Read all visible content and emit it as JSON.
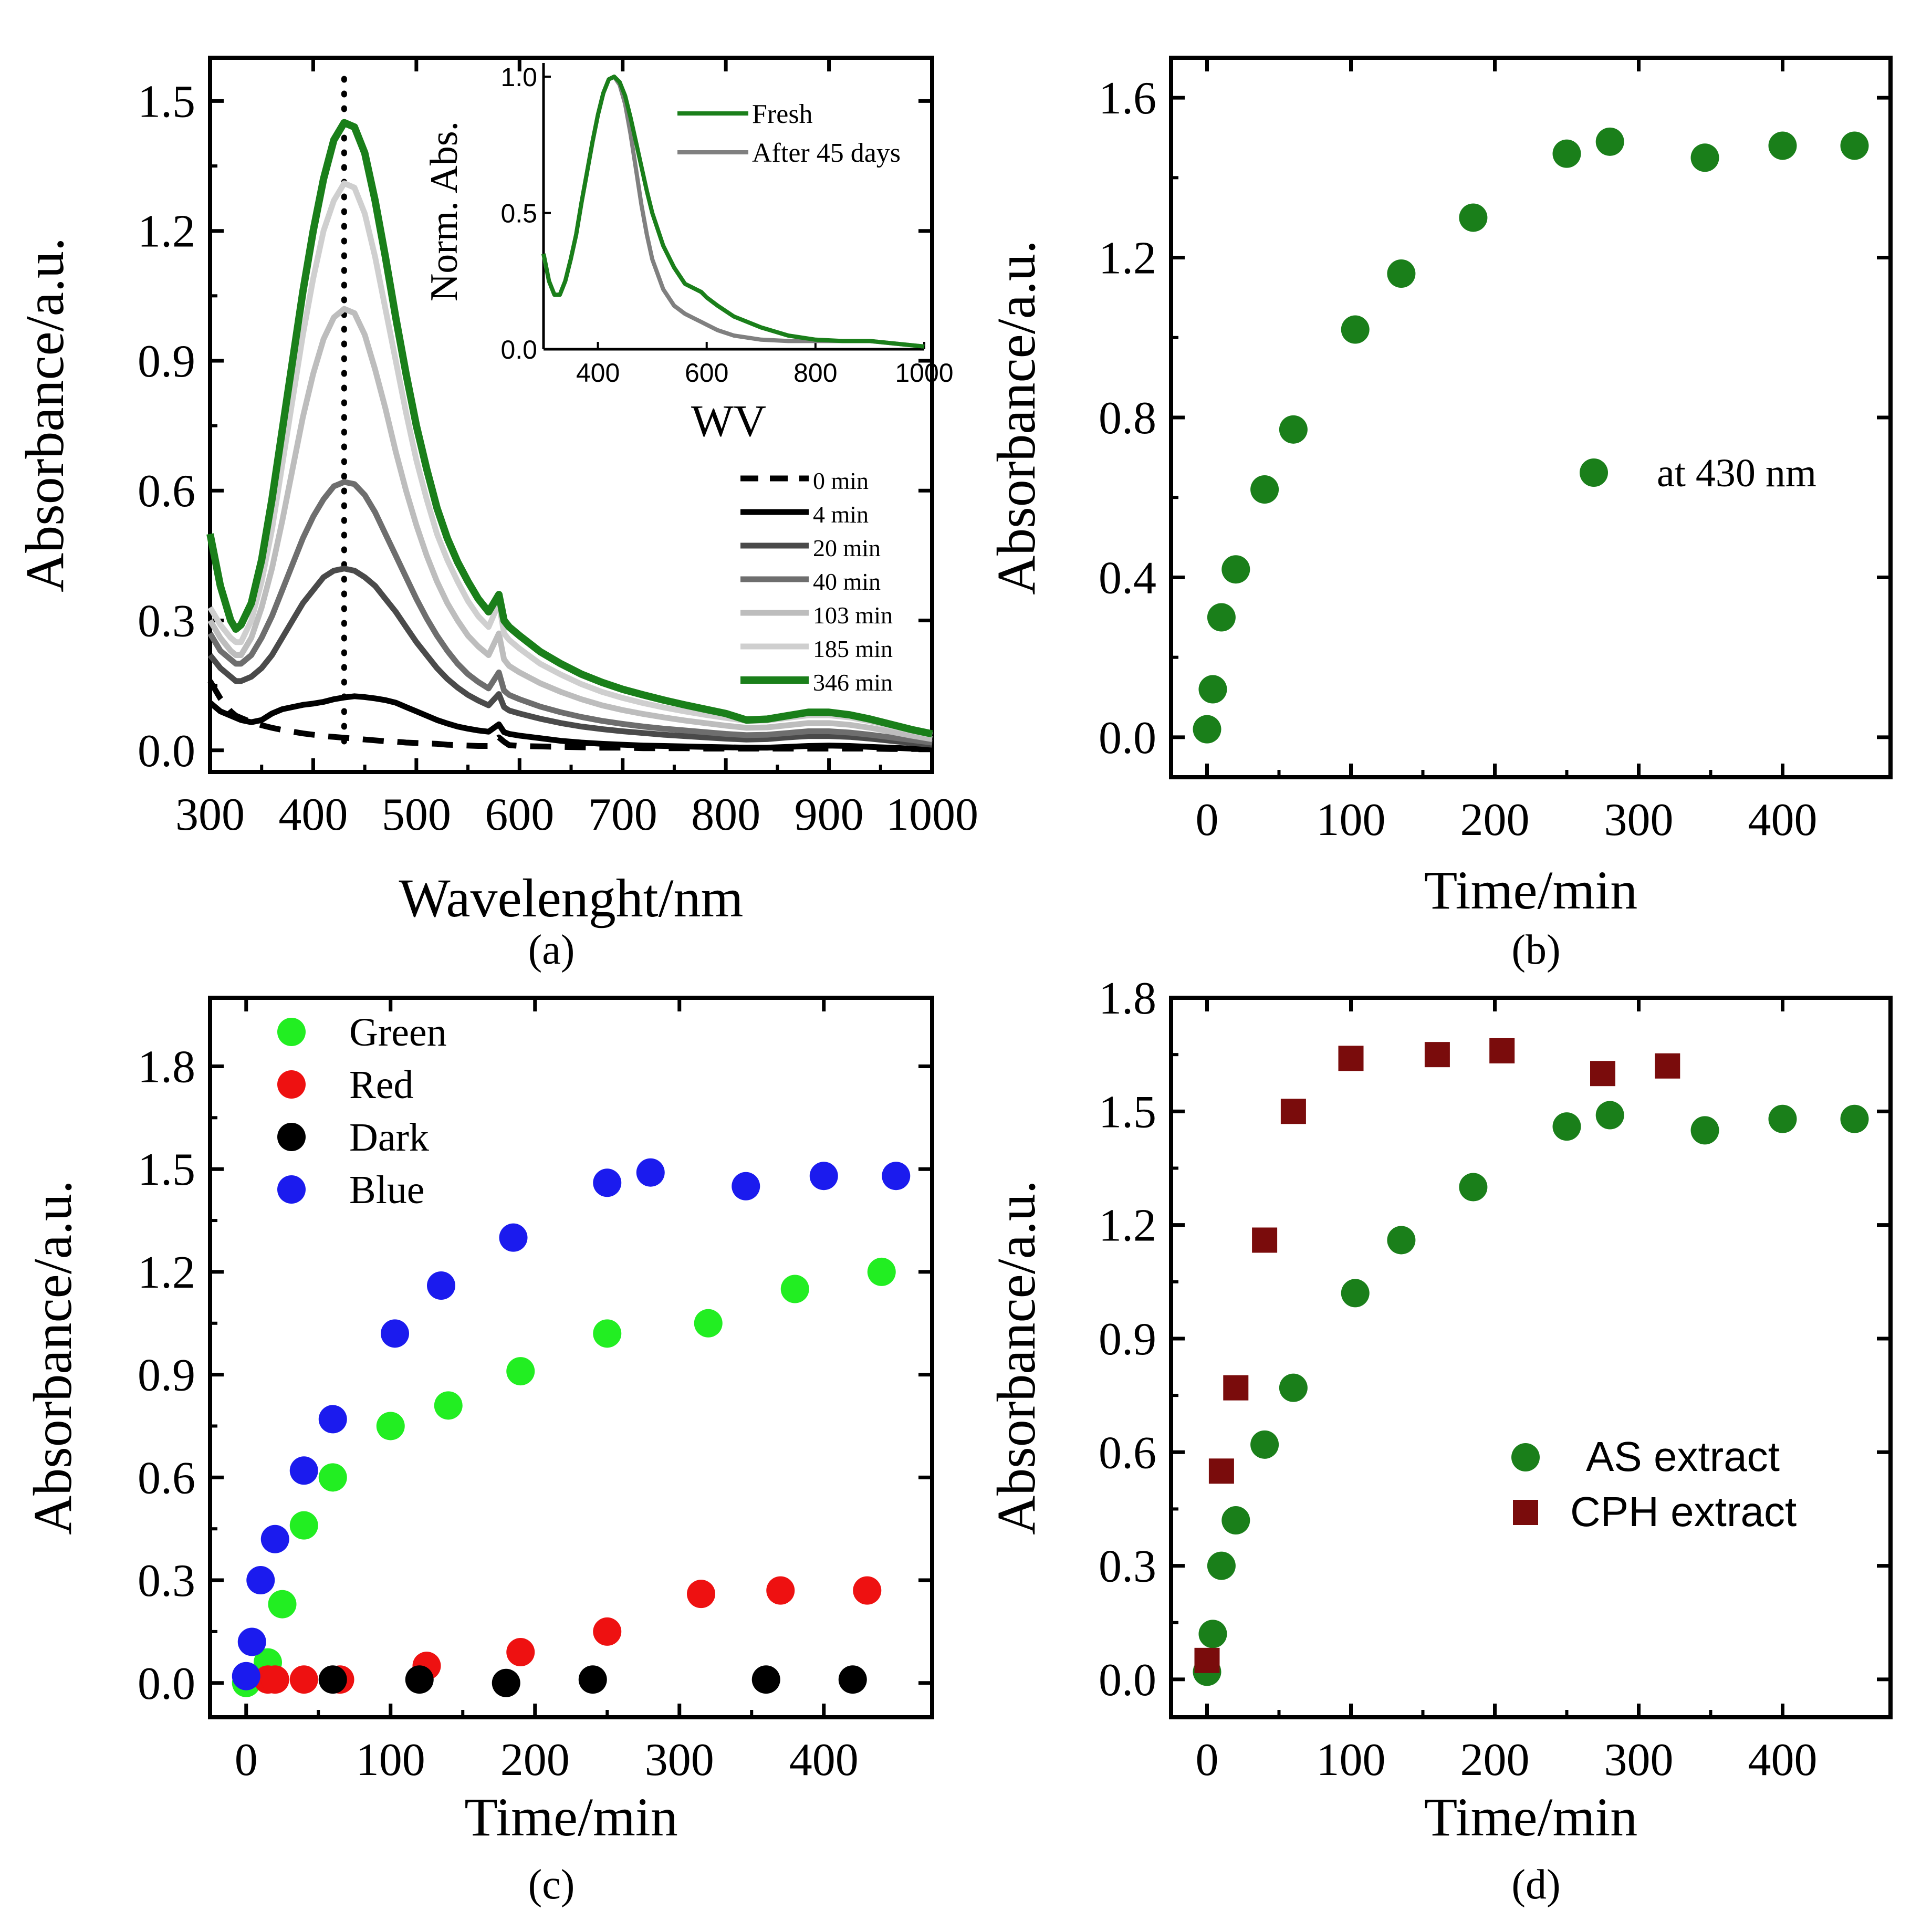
{
  "colors": {
    "fresh": "#1a7f1a",
    "aged": "#808080",
    "as_extract": "#1a7f1a",
    "cph_extract": "#7a0c0c",
    "green": "#22ee22",
    "red": "#ee1111",
    "dark": "#000000",
    "blue": "#1b1bee"
  },
  "chart_data": [
    {
      "panel": "a",
      "type": "line",
      "caption": "(a)",
      "xlabel": "Wavelenght/nm",
      "ylabel": "Absorbance/a.u.",
      "xlim": [
        300,
        1000
      ],
      "ylim": [
        -0.05,
        1.6
      ],
      "xticks": [
        300,
        400,
        500,
        600,
        700,
        800,
        900,
        1000
      ],
      "xtick_labels": [
        "300",
        "400",
        "500",
        "600",
        "700",
        "800",
        "900",
        "1000"
      ],
      "yticks": [
        0.0,
        0.3,
        0.6,
        0.9,
        1.2,
        1.5
      ],
      "ytick_labels": [
        "0.0",
        "0.3",
        "0.6",
        "0.9",
        "1.2",
        "1.5"
      ],
      "peak_marker_x": 430,
      "legend_position": "bottom-right",
      "x": [
        300,
        310,
        320,
        325,
        330,
        340,
        350,
        360,
        370,
        380,
        390,
        400,
        410,
        420,
        430,
        440,
        450,
        460,
        470,
        480,
        490,
        500,
        510,
        520,
        530,
        540,
        550,
        560,
        570,
        580,
        585,
        590,
        600,
        620,
        640,
        660,
        680,
        700,
        720,
        740,
        760,
        780,
        800,
        820,
        840,
        860,
        880,
        900,
        920,
        940,
        960,
        980,
        1000
      ],
      "series": [
        {
          "name": "0 min",
          "color": "#000000",
          "dash": "dashed",
          "values": [
            0.16,
            0.12,
            0.09,
            0.08,
            0.075,
            0.065,
            0.058,
            0.052,
            0.047,
            0.043,
            0.039,
            0.036,
            0.033,
            0.031,
            0.029,
            0.027,
            0.025,
            0.023,
            0.021,
            0.02,
            0.018,
            0.017,
            0.016,
            0.015,
            0.013,
            0.012,
            0.011,
            0.01,
            0.01,
            0.03,
            0.02,
            0.012,
            0.01,
            0.009,
            0.008,
            0.007,
            0.006,
            0.006,
            0.005,
            0.005,
            0.005,
            0.004,
            0.004,
            0.004,
            0.004,
            0.004,
            0.004,
            0.004,
            0.004,
            0.004,
            0.003,
            0.003,
            0.003
          ]
        },
        {
          "name": "4 min",
          "color": "#000000",
          "dash": "solid",
          "values": [
            0.11,
            0.09,
            0.08,
            0.075,
            0.07,
            0.065,
            0.07,
            0.085,
            0.095,
            0.1,
            0.105,
            0.108,
            0.112,
            0.118,
            0.122,
            0.125,
            0.123,
            0.12,
            0.116,
            0.11,
            0.1,
            0.09,
            0.08,
            0.07,
            0.062,
            0.055,
            0.05,
            0.046,
            0.043,
            0.06,
            0.042,
            0.038,
            0.034,
            0.028,
            0.022,
            0.018,
            0.015,
            0.013,
            0.011,
            0.01,
            0.009,
            0.008,
            0.007,
            0.006,
            0.006,
            0.008,
            0.01,
            0.011,
            0.01,
            0.008,
            0.006,
            0.004,
            0.003
          ]
        },
        {
          "name": "20 min",
          "color": "#4a4a4a",
          "dash": "solid",
          "values": [
            0.22,
            0.19,
            0.17,
            0.16,
            0.16,
            0.17,
            0.19,
            0.22,
            0.26,
            0.3,
            0.34,
            0.37,
            0.4,
            0.415,
            0.42,
            0.415,
            0.4,
            0.38,
            0.35,
            0.32,
            0.285,
            0.25,
            0.22,
            0.19,
            0.165,
            0.145,
            0.128,
            0.115,
            0.104,
            0.13,
            0.1,
            0.092,
            0.085,
            0.073,
            0.063,
            0.055,
            0.049,
            0.044,
            0.04,
            0.036,
            0.033,
            0.03,
            0.027,
            0.025,
            0.026,
            0.03,
            0.033,
            0.033,
            0.031,
            0.027,
            0.022,
            0.017,
            0.013
          ]
        },
        {
          "name": "40 min",
          "color": "#6e6e6e",
          "dash": "solid",
          "values": [
            0.27,
            0.23,
            0.21,
            0.2,
            0.2,
            0.22,
            0.26,
            0.31,
            0.37,
            0.43,
            0.49,
            0.54,
            0.58,
            0.61,
            0.62,
            0.615,
            0.59,
            0.55,
            0.5,
            0.45,
            0.4,
            0.35,
            0.305,
            0.265,
            0.23,
            0.2,
            0.176,
            0.158,
            0.143,
            0.18,
            0.138,
            0.128,
            0.118,
            0.101,
            0.088,
            0.077,
            0.068,
            0.061,
            0.055,
            0.05,
            0.046,
            0.042,
            0.038,
            0.035,
            0.036,
            0.04,
            0.044,
            0.044,
            0.041,
            0.036,
            0.03,
            0.024,
            0.018
          ]
        },
        {
          "name": "103 min",
          "color": "#bdbdbd",
          "dash": "solid",
          "values": [
            0.3,
            0.26,
            0.23,
            0.22,
            0.22,
            0.26,
            0.33,
            0.42,
            0.53,
            0.65,
            0.77,
            0.87,
            0.95,
            1.0,
            1.02,
            1.01,
            0.96,
            0.88,
            0.79,
            0.69,
            0.6,
            0.52,
            0.45,
            0.39,
            0.34,
            0.3,
            0.265,
            0.24,
            0.22,
            0.27,
            0.21,
            0.195,
            0.18,
            0.155,
            0.135,
            0.118,
            0.104,
            0.093,
            0.084,
            0.076,
            0.069,
            0.063,
            0.057,
            0.052,
            0.053,
            0.058,
            0.063,
            0.063,
            0.059,
            0.052,
            0.043,
            0.034,
            0.026
          ]
        },
        {
          "name": "185 min",
          "color": "#cfcfcf",
          "dash": "solid",
          "values": [
            0.33,
            0.29,
            0.26,
            0.25,
            0.25,
            0.3,
            0.39,
            0.51,
            0.66,
            0.81,
            0.96,
            1.09,
            1.2,
            1.27,
            1.31,
            1.3,
            1.24,
            1.14,
            1.02,
            0.9,
            0.78,
            0.67,
            0.58,
            0.5,
            0.44,
            0.39,
            0.345,
            0.31,
            0.285,
            0.34,
            0.27,
            0.255,
            0.235,
            0.2,
            0.175,
            0.153,
            0.135,
            0.121,
            0.109,
            0.099,
            0.09,
            0.082,
            0.075,
            0.068,
            0.069,
            0.075,
            0.081,
            0.081,
            0.076,
            0.067,
            0.056,
            0.045,
            0.035
          ]
        },
        {
          "name": "346 min",
          "color": "#1a7f1a",
          "dash": "solid",
          "values": [
            0.5,
            0.38,
            0.3,
            0.28,
            0.29,
            0.34,
            0.44,
            0.58,
            0.74,
            0.9,
            1.06,
            1.2,
            1.32,
            1.41,
            1.45,
            1.44,
            1.38,
            1.27,
            1.14,
            1.0,
            0.87,
            0.75,
            0.65,
            0.56,
            0.49,
            0.435,
            0.39,
            0.35,
            0.32,
            0.36,
            0.3,
            0.285,
            0.265,
            0.228,
            0.2,
            0.176,
            0.157,
            0.141,
            0.128,
            0.116,
            0.105,
            0.095,
            0.085,
            0.07,
            0.072,
            0.08,
            0.088,
            0.088,
            0.082,
            0.072,
            0.06,
            0.048,
            0.038
          ]
        }
      ],
      "inset": {
        "type": "line",
        "xlabel": "WV",
        "ylabel": "Norm. Abs.",
        "xlim": [
          300,
          1000
        ],
        "ylim": [
          0.0,
          1.05
        ],
        "xticks": [
          400,
          600,
          800,
          1000
        ],
        "xtick_labels": [
          "400",
          "600",
          "800",
          "1000"
        ],
        "yticks": [
          0.0,
          0.5,
          1.0
        ],
        "ytick_labels": [
          "0.0",
          "0.5",
          "1.0"
        ],
        "x": [
          300,
          310,
          320,
          330,
          340,
          350,
          360,
          370,
          380,
          390,
          400,
          410,
          420,
          430,
          440,
          450,
          460,
          470,
          480,
          490,
          500,
          520,
          540,
          560,
          580,
          590,
          600,
          620,
          650,
          700,
          750,
          800,
          850,
          900,
          950,
          1000
        ],
        "series": [
          {
            "name": "Fresh",
            "color": "#1a7f1a",
            "values": [
              0.35,
              0.25,
              0.2,
              0.2,
              0.25,
              0.33,
              0.42,
              0.54,
              0.65,
              0.76,
              0.86,
              0.94,
              0.99,
              1.0,
              0.98,
              0.93,
              0.85,
              0.76,
              0.67,
              0.58,
              0.5,
              0.38,
              0.3,
              0.24,
              0.22,
              0.21,
              0.19,
              0.16,
              0.12,
              0.08,
              0.05,
              0.035,
              0.03,
              0.03,
              0.02,
              0.01
            ]
          },
          {
            "name": "After 45 days",
            "color": "#808080",
            "values": [
              0.35,
              0.25,
              0.2,
              0.2,
              0.25,
              0.33,
              0.42,
              0.54,
              0.65,
              0.76,
              0.86,
              0.94,
              0.99,
              1.0,
              0.97,
              0.9,
              0.79,
              0.66,
              0.53,
              0.42,
              0.33,
              0.22,
              0.16,
              0.13,
              0.11,
              0.1,
              0.09,
              0.07,
              0.05,
              0.035,
              0.03,
              0.03,
              0.03,
              0.03,
              0.02,
              0.01
            ]
          }
        ]
      }
    },
    {
      "panel": "b",
      "type": "scatter",
      "caption": "(b)",
      "xlabel": "Time/min",
      "ylabel": "Absorbance/a.u.",
      "xlim": [
        -25,
        475
      ],
      "ylim": [
        -0.1,
        1.7
      ],
      "xticks": [
        0,
        100,
        200,
        300,
        400
      ],
      "xtick_labels": [
        "0",
        "100",
        "200",
        "300",
        "400"
      ],
      "yticks": [
        0.0,
        0.4,
        0.8,
        1.2,
        1.6
      ],
      "ytick_labels": [
        "0.0",
        "0.4",
        "0.8",
        "1.2",
        "1.6"
      ],
      "legend_position": "center-right",
      "series": [
        {
          "name": "at 430 nm",
          "marker": "circle",
          "color": "#1a7f1a",
          "x": [
            0,
            4,
            10,
            20,
            40,
            60,
            103,
            135,
            185,
            250,
            280,
            346,
            400,
            450
          ],
          "y": [
            0.02,
            0.12,
            0.3,
            0.42,
            0.62,
            0.77,
            1.02,
            1.16,
            1.3,
            1.46,
            1.49,
            1.45,
            1.48,
            1.48
          ]
        }
      ]
    },
    {
      "panel": "c",
      "type": "scatter",
      "caption": "(c)",
      "xlabel": "Time/min",
      "ylabel": "Absorbance/a.u.",
      "xlim": [
        -25,
        475
      ],
      "ylim": [
        -0.1,
        2.0
      ],
      "xticks": [
        0,
        100,
        200,
        300,
        400
      ],
      "xtick_labels": [
        "0",
        "100",
        "200",
        "300",
        "400"
      ],
      "yticks": [
        0.0,
        0.3,
        0.6,
        0.9,
        1.2,
        1.5,
        1.8
      ],
      "ytick_labels": [
        "0.0",
        "0.3",
        "0.6",
        "0.9",
        "1.2",
        "1.5",
        "1.8"
      ],
      "legend_position": "top-left",
      "series": [
        {
          "name": "Green",
          "marker": "circle",
          "color": "#22ee22",
          "x": [
            0,
            15,
            25,
            40,
            60,
            100,
            140,
            190,
            250,
            320,
            380,
            440
          ],
          "y": [
            0.0,
            0.06,
            0.23,
            0.46,
            0.6,
            0.75,
            0.81,
            0.91,
            1.02,
            1.05,
            1.15,
            1.2
          ]
        },
        {
          "name": "Red",
          "marker": "circle",
          "color": "#ee1111",
          "x": [
            15,
            20,
            40,
            65,
            125,
            190,
            250,
            315,
            370,
            430
          ],
          "y": [
            0.01,
            0.01,
            0.01,
            0.01,
            0.05,
            0.09,
            0.15,
            0.26,
            0.27,
            0.27
          ]
        },
        {
          "name": "Dark",
          "marker": "circle",
          "color": "#000000",
          "x": [
            60,
            120,
            180,
            240,
            360,
            420
          ],
          "y": [
            0.01,
            0.01,
            0.0,
            0.01,
            0.01,
            0.01
          ]
        },
        {
          "name": "Blue",
          "marker": "circle",
          "color": "#1b1bee",
          "x": [
            0,
            4,
            10,
            20,
            40,
            60,
            103,
            135,
            185,
            250,
            280,
            346,
            400,
            450
          ],
          "y": [
            0.02,
            0.12,
            0.3,
            0.42,
            0.62,
            0.77,
            1.02,
            1.16,
            1.3,
            1.46,
            1.49,
            1.45,
            1.48,
            1.48
          ]
        }
      ]
    },
    {
      "panel": "d",
      "type": "scatter",
      "caption": "(d)",
      "xlabel": "Time/min",
      "ylabel": "Absorbance/a.u.",
      "xlim": [
        -25,
        475
      ],
      "ylim": [
        -0.1,
        1.8
      ],
      "xticks": [
        0,
        100,
        200,
        300,
        400
      ],
      "xtick_labels": [
        "0",
        "100",
        "200",
        "300",
        "400"
      ],
      "yticks": [
        0.0,
        0.3,
        0.6,
        0.9,
        1.2,
        1.5,
        1.8
      ],
      "ytick_labels": [
        "0.0",
        "0.3",
        "0.6",
        "0.9",
        "1.2",
        "1.5",
        "1.8"
      ],
      "legend_position": "bottom-right",
      "series": [
        {
          "name": "AS extract",
          "marker": "circle",
          "color": "#1a7f1a",
          "x": [
            0,
            4,
            10,
            20,
            40,
            60,
            103,
            135,
            185,
            250,
            280,
            346,
            400,
            450
          ],
          "y": [
            0.02,
            0.12,
            0.3,
            0.42,
            0.62,
            0.77,
            1.02,
            1.16,
            1.3,
            1.46,
            1.49,
            1.45,
            1.48,
            1.48
          ]
        },
        {
          "name": "CPH extract",
          "marker": "square",
          "color": "#7a0c0c",
          "x": [
            0,
            10,
            20,
            40,
            60,
            100,
            160,
            205,
            275,
            320
          ],
          "y": [
            0.05,
            0.55,
            0.77,
            1.16,
            1.5,
            1.64,
            1.65,
            1.66,
            1.6,
            1.62
          ]
        }
      ]
    }
  ]
}
